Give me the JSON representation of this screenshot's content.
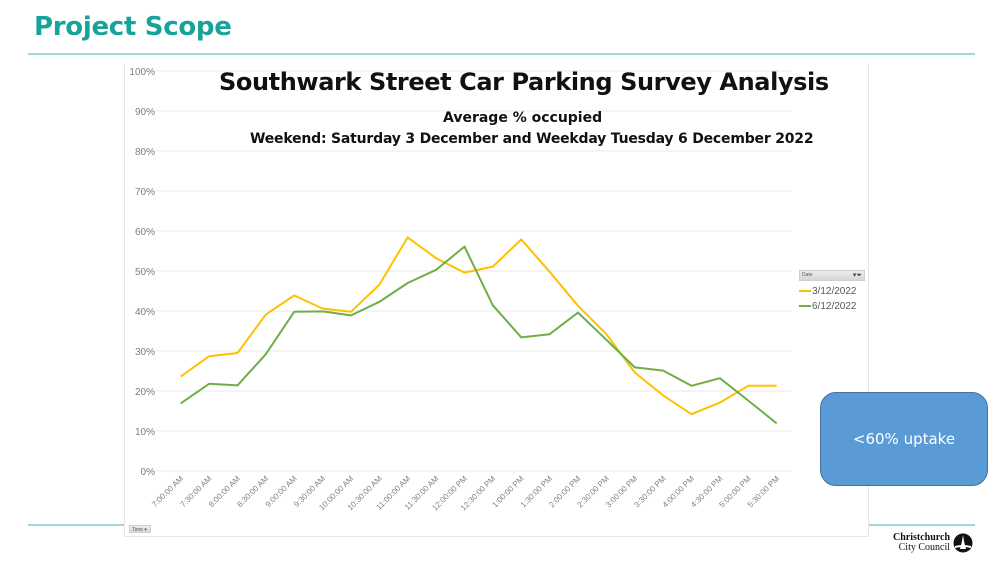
{
  "slide": {
    "title": "Project Scope",
    "callout": "<60% uptake",
    "logo": {
      "line1": "Christchurch",
      "line2": "City Council"
    }
  },
  "colors": {
    "title": "#17a39a",
    "rule": "#9fd8d6",
    "series_3_12": "#ffc000",
    "series_6_12": "#70ad47",
    "callout": "#5b9bd5",
    "grid": "#e8e8e8",
    "tick": "#7f7f7f"
  },
  "pivot": {
    "field_legend": "Date",
    "field_axis": "Time",
    "filter_icon": "filter-icon",
    "dropdown_icon": "chevron-down-icon"
  },
  "chart_data": {
    "type": "line",
    "title": "Southwark Street Car Parking Survey Analysis",
    "subtitle1": "Average % occupied",
    "subtitle2": "Weekend: Saturday 3 December and Weekday Tuesday 6 December 2022",
    "xlabel": "",
    "ylabel": "",
    "ylim": [
      0,
      100
    ],
    "grid": true,
    "legend_position": "right",
    "y_ticks": [
      "0%",
      "10%",
      "20%",
      "30%",
      "40%",
      "50%",
      "60%",
      "70%",
      "80%",
      "90%",
      "100%"
    ],
    "categories": [
      "7:00:00 AM",
      "7:30:00 AM",
      "8:00:00 AM",
      "8:30:00 AM",
      "9:00:00 AM",
      "9:30:00 AM",
      "10:00:00 AM",
      "10:30:00 AM",
      "11:00:00 AM",
      "11:30:00 AM",
      "12:00:00 PM",
      "12:30:00 PM",
      "1:00:00 PM",
      "1:30:00 PM",
      "2:00:00 PM",
      "2:30:00 PM",
      "3:00:00 PM",
      "3:30:00 PM",
      "4:00:00 PM",
      "4:30:00 PM",
      "5:00:00 PM",
      "5:30:00 PM"
    ],
    "series": [
      {
        "name": "3/12/2022",
        "color": "#ffc000",
        "values": [
          23.6,
          28.7,
          29.5,
          39.1,
          43.9,
          40.6,
          39.8,
          46.6,
          58.4,
          53.2,
          49.6,
          51.1,
          57.9,
          49.8,
          41.3,
          34.2,
          24.6,
          18.9,
          14.2,
          17.1,
          21.3,
          21.3
        ]
      },
      {
        "name": "6/12/2022",
        "color": "#70ad47",
        "values": [
          16.9,
          21.8,
          21.4,
          29.2,
          39.8,
          39.9,
          38.9,
          42.3,
          47.0,
          50.3,
          56.1,
          41.4,
          33.4,
          34.2,
          39.6,
          32.8,
          25.9,
          25.1,
          21.3,
          23.2,
          17.6,
          11.9
        ]
      }
    ]
  }
}
